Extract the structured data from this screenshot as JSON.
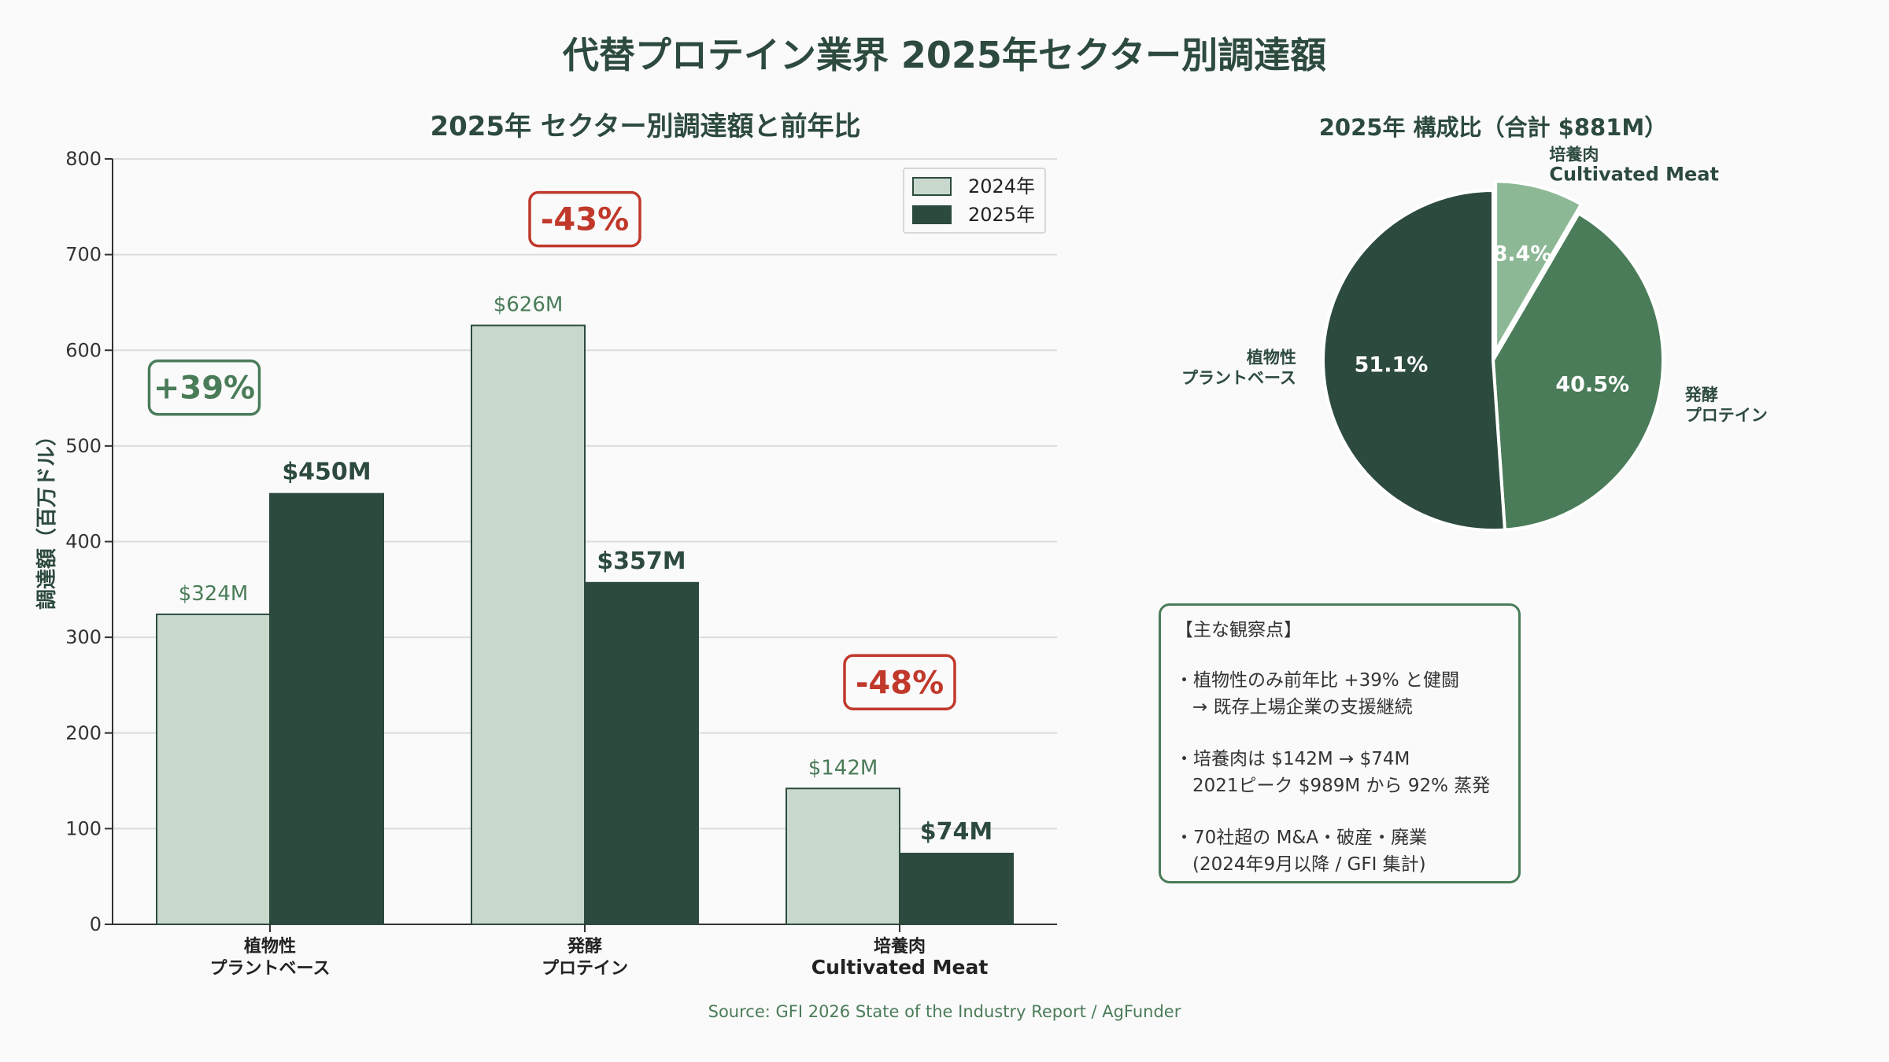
{
  "title": "代替プロテイン業界 2025年セクター別調達額",
  "colors": {
    "dark": "#2d4a3e",
    "light": "#c8d8cc",
    "mid": "#4a7c59",
    "pale": "#8db896",
    "red": "#c0392b",
    "grid": "#dcdcdc"
  },
  "chart_data": [
    {
      "type": "bar",
      "title": "2025年 セクター別調達額と前年比",
      "ylabel": "調達額（百万ドル）",
      "ylim": [
        0,
        800
      ],
      "yticks": [
        0,
        100,
        200,
        300,
        400,
        500,
        600,
        700,
        800
      ],
      "grid": true,
      "legend_position": "top-right",
      "categories": [
        [
          "植物性",
          "プラントベース"
        ],
        [
          "発酵",
          "プロテイン"
        ],
        [
          "培養肉",
          "Cultivated Meat"
        ]
      ],
      "series": [
        {
          "name": "2024年",
          "values": [
            324,
            626,
            142
          ],
          "labels": [
            "$324M",
            "$626M",
            "$142M"
          ]
        },
        {
          "name": "2025年",
          "values": [
            450,
            357,
            74
          ],
          "labels": [
            "$450M",
            "$357M",
            "$74M"
          ]
        }
      ],
      "annotations": [
        {
          "category": 0,
          "text": "+39%",
          "kind": "up"
        },
        {
          "category": 1,
          "text": "-43%",
          "kind": "down"
        },
        {
          "category": 2,
          "text": "-48%",
          "kind": "down"
        }
      ]
    },
    {
      "type": "pie",
      "title": "2025年 構成比（合計 $881M）",
      "slices": [
        {
          "label": [
            "培養肉",
            "Cultivated Meat"
          ],
          "value": 8.4,
          "pct_text": "8.4%",
          "explode": true
        },
        {
          "label": [
            "発酵",
            "プロテイン"
          ],
          "value": 40.5,
          "pct_text": "40.5%",
          "explode": false
        },
        {
          "label": [
            "植物性",
            "プラントベース"
          ],
          "value": 51.1,
          "pct_text": "51.1%",
          "explode": false
        }
      ]
    }
  ],
  "notes": {
    "title": "【主な観察点】",
    "items": [
      {
        "line1": "・植物性のみ前年比 +39% と健闘",
        "line2": "→ 既存上場企業の支援継続"
      },
      {
        "line1": "・培養肉は $142M → $74M",
        "line2": "2021ピーク $989M から 92% 蒸発"
      },
      {
        "line1": "・70社超の M&A・破産・廃業",
        "line2": "(2024年9月以降 / GFI 集計)"
      }
    ]
  },
  "source": "Source: GFI 2026 State of the Industry Report / AgFunder"
}
